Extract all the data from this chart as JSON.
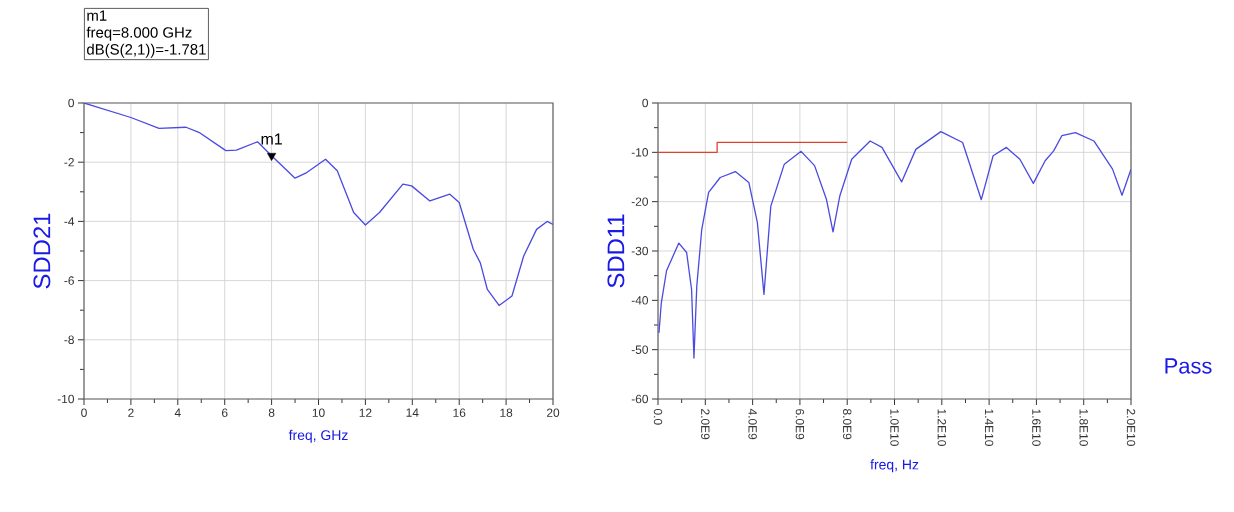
{
  "chart_data": [
    {
      "type": "line",
      "xlabel": "freq, GHz",
      "ylabel": "SDD21",
      "grid": true,
      "xlim": [
        0,
        20
      ],
      "xticks": [
        0,
        2,
        4,
        6,
        8,
        10,
        12,
        14,
        16,
        18,
        20
      ],
      "ylim": [
        -10,
        0
      ],
      "yticks": [
        -10,
        -8,
        -6,
        -4,
        -2,
        0
      ],
      "series": [
        {
          "color": "#4a4ae0",
          "x": [
            0,
            2,
            3.2,
            4.35,
            4.9,
            6.05,
            6.5,
            7.4,
            8,
            9,
            9.5,
            10.3,
            10.8,
            11.5,
            12,
            12.6,
            13.6,
            13.97,
            14.75,
            15.6,
            16,
            16.6,
            16.9,
            17.2,
            17.7,
            18.25,
            18.75,
            19.3,
            19.75,
            20
          ],
          "values": [
            0,
            -0.49,
            -0.86,
            -0.82,
            -0.99,
            -1.61,
            -1.59,
            -1.31,
            -1.78,
            -2.54,
            -2.35,
            -1.9,
            -2.29,
            -3.7,
            -4.12,
            -3.7,
            -2.74,
            -2.8,
            -3.31,
            -3.08,
            -3.36,
            -4.94,
            -5.4,
            -6.3,
            -6.84,
            -6.52,
            -5.17,
            -4.27,
            -4.0,
            -4.1
          ]
        },
        {
          "type": "scatter",
          "color": "#000000",
          "marker": "triangle",
          "x": [
            8
          ],
          "values": [
            -1.781
          ]
        }
      ],
      "annotations": [
        {
          "text": "m1",
          "x": 8,
          "y": -1.781
        },
        "m1",
        "freq=8.000 GHz",
        "dB(S(2,1))=-1.781"
      ]
    },
    {
      "type": "line",
      "xlabel": "freq, Hz",
      "ylabel": "SDD11",
      "grid": true,
      "xlim": [
        0,
        20000000000.0
      ],
      "xticks": [
        {
          "value": 0,
          "label": "0.0"
        },
        {
          "value": 2000000000.0,
          "label": "2.0E9"
        },
        {
          "value": 4000000000.0,
          "label": "4.0E9"
        },
        {
          "value": 6000000000.0,
          "label": "6.0E9"
        },
        {
          "value": 8000000000.0,
          "label": "8.0E9"
        },
        {
          "value": 10000000000.0,
          "label": "1.0E10"
        },
        {
          "value": 12000000000.0,
          "label": "1.2E10"
        },
        {
          "value": 14000000000.0,
          "label": "1.4E10"
        },
        {
          "value": 16000000000.0,
          "label": "1.6E10"
        },
        {
          "value": 18000000000.0,
          "label": "1.8E10"
        },
        {
          "value": 20000000000.0,
          "label": "2.0E10"
        }
      ],
      "ylim": [
        -60,
        0
      ],
      "yticks": [
        -60,
        -50,
        -40,
        -30,
        -20,
        -10,
        0
      ],
      "series": [
        {
          "color": "#4a4ae0",
          "x": [
            40000000.0,
            140000000.0,
            360000000.0,
            880000000.0,
            1210000000.0,
            1420000000.0,
            1520000000.0,
            1640000000.0,
            1850000000.0,
            2140000000.0,
            2630000000.0,
            3270000000.0,
            3840000000.0,
            4200000000.0,
            4480000000.0,
            4770000000.0,
            5340000000.0,
            6050000000.0,
            6620000000.0,
            7120000000.0,
            7400000000.0,
            7690000000.0,
            8190000000.0,
            8970000000.0,
            9470000000.0,
            10300000000.0,
            10900000000.0,
            11960000000.0,
            12880000000.0,
            13670000000.0,
            14170000000.0,
            14730000000.0,
            15300000000.0,
            15870000000.0,
            16370000000.0,
            16730000000.0,
            17080000000.0,
            17650000000.0,
            18430000000.0,
            19220000000.0,
            19620000000.0,
            20000000000.0
          ],
          "values": [
            -46.6,
            -40.5,
            -34,
            -28.4,
            -30.3,
            -37.8,
            -51.7,
            -37.1,
            -25.6,
            -18.1,
            -15.1,
            -13.9,
            -16.1,
            -24.2,
            -38.8,
            -20.9,
            -12.4,
            -9.8,
            -12.7,
            -19.5,
            -26.1,
            -18.8,
            -11.4,
            -7.7,
            -9.0,
            -16.0,
            -9.4,
            -5.8,
            -8.0,
            -19.6,
            -10.7,
            -9.0,
            -11.4,
            -16.3,
            -11.7,
            -9.7,
            -6.6,
            -6.0,
            -7.7,
            -13.4,
            -18.7,
            -13.4
          ]
        },
        {
          "type": "step",
          "color": "#e04030",
          "x": [
            0,
            2500000000.0,
            8000000000.0
          ],
          "values": [
            -10,
            -8,
            -8
          ]
        }
      ],
      "annotations": [
        "Pass"
      ]
    }
  ]
}
